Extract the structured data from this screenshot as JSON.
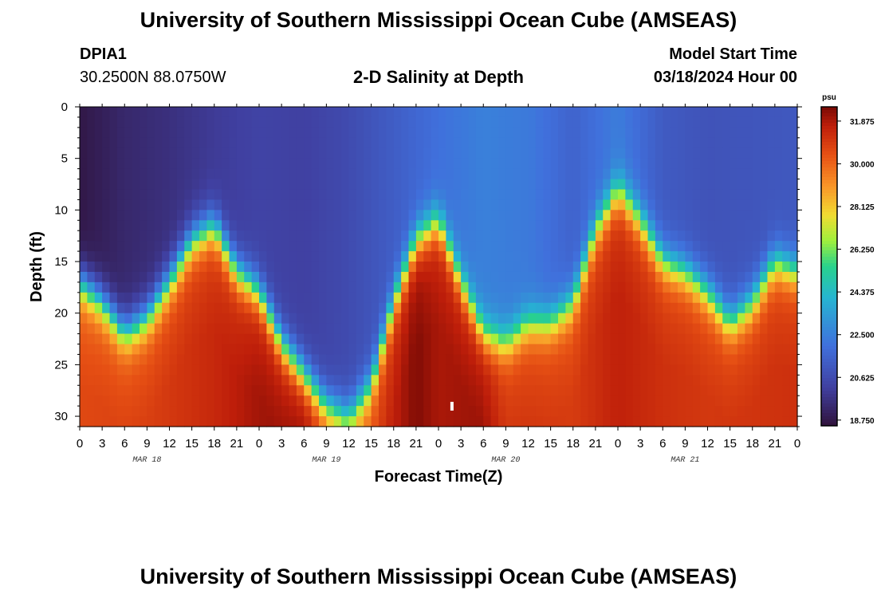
{
  "header": {
    "title": "University of Southern Mississippi Ocean Cube (AMSEAS)",
    "station": "DPIA1",
    "coords": "30.2500N  88.0750W",
    "subtitle": "2-D Salinity at Depth",
    "model_label": "Model Start Time",
    "model_time": "03/18/2024 Hour 00"
  },
  "footer": {
    "title": "University of Southern Mississippi Ocean Cube (AMSEAS)"
  },
  "chart_data": {
    "type": "heatmap",
    "title": "2-D Salinity at Depth",
    "xlabel": "Forecast Time(Z)",
    "ylabel": "Depth (ft)",
    "x_tick_labels": [
      "0",
      "3",
      "6",
      "9",
      "12",
      "15",
      "18",
      "21",
      "0",
      "3",
      "6",
      "9",
      "12",
      "15",
      "18",
      "21",
      "0",
      "3",
      "6",
      "9",
      "12",
      "15",
      "18",
      "21",
      "0",
      "3",
      "6",
      "9",
      "12",
      "15",
      "18",
      "21",
      "0"
    ],
    "date_labels": [
      {
        "text": "MAR 18",
        "hour": 9
      },
      {
        "text": "MAR 19",
        "hour": 33
      },
      {
        "text": "MAR 20",
        "hour": 57
      },
      {
        "text": "MAR 21",
        "hour": 81
      }
    ],
    "x_range_hours": [
      0,
      96
    ],
    "y_ticks": [
      0,
      5,
      10,
      15,
      20,
      25,
      30
    ],
    "y_range_ft": [
      0,
      31
    ],
    "colorbar": {
      "unit": "psu",
      "range": [
        18.5,
        32.5
      ],
      "ticks": [
        "31.875",
        "30.000",
        "28.125",
        "26.250",
        "24.375",
        "22.500",
        "20.625",
        "18.750"
      ]
    },
    "interface_depth_by_hour": [
      [
        0,
        17
      ],
      [
        3,
        19
      ],
      [
        6,
        22
      ],
      [
        9,
        20.5
      ],
      [
        12,
        17
      ],
      [
        15,
        13
      ],
      [
        18,
        11.5
      ],
      [
        21,
        16
      ],
      [
        24,
        18
      ],
      [
        27,
        23
      ],
      [
        30,
        26
      ],
      [
        33,
        29
      ],
      [
        36,
        30
      ],
      [
        39,
        27
      ],
      [
        42,
        19
      ],
      [
        45,
        13
      ],
      [
        48,
        11
      ],
      [
        51,
        17
      ],
      [
        54,
        22
      ],
      [
        57,
        23
      ],
      [
        60,
        21
      ],
      [
        63,
        21
      ],
      [
        66,
        19
      ],
      [
        69,
        12
      ],
      [
        72,
        8
      ],
      [
        75,
        11
      ],
      [
        78,
        15
      ],
      [
        81,
        16
      ],
      [
        84,
        18
      ],
      [
        87,
        21
      ],
      [
        90,
        19
      ],
      [
        93,
        15
      ],
      [
        96,
        16
      ]
    ],
    "surface_value_by_hour": [
      [
        0,
        18.7
      ],
      [
        6,
        19.3
      ],
      [
        12,
        19.6
      ],
      [
        18,
        20.0
      ],
      [
        24,
        20.3
      ],
      [
        30,
        20.2
      ],
      [
        36,
        20.6
      ],
      [
        42,
        21.3
      ],
      [
        48,
        22.0
      ],
      [
        54,
        22.5
      ],
      [
        60,
        22.3
      ],
      [
        66,
        21.5
      ],
      [
        72,
        22.4
      ],
      [
        78,
        21.2
      ],
      [
        84,
        20.9
      ],
      [
        90,
        21.0
      ],
      [
        96,
        21.1
      ]
    ],
    "bottom_value_by_hour": [
      [
        0,
        30.0
      ],
      [
        9,
        30.2
      ],
      [
        18,
        30.8
      ],
      [
        24,
        31.4
      ],
      [
        30,
        31.6
      ],
      [
        36,
        29.0
      ],
      [
        42,
        31.0
      ],
      [
        45,
        31.8
      ],
      [
        48,
        31.3
      ],
      [
        54,
        31.5
      ],
      [
        57,
        30.5
      ],
      [
        66,
        30.3
      ],
      [
        72,
        31.0
      ],
      [
        78,
        30.6
      ],
      [
        84,
        30.4
      ],
      [
        90,
        30.5
      ],
      [
        96,
        30.6
      ]
    ]
  }
}
